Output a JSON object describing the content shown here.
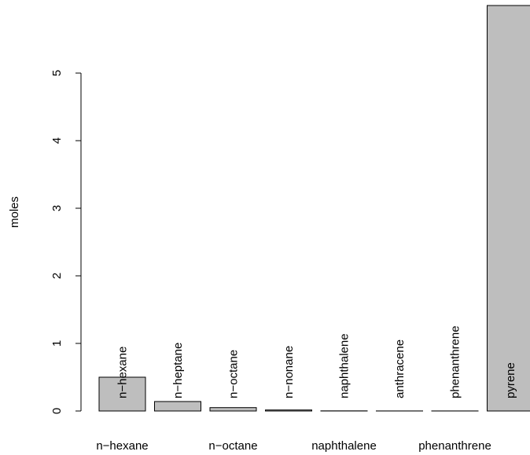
{
  "chart_data": {
    "type": "bar",
    "y_label": "moles",
    "categories": [
      "n−hexane",
      "n−heptane",
      "n−octane",
      "n−nonane",
      "naphthalene",
      "anthracene",
      "phenanthrene",
      "pyrene"
    ],
    "values": [
      0.5,
      0.14,
      0.05,
      0.015,
      0.002,
      0.001,
      0.001,
      6.0
    ],
    "color": "#bebebe",
    "ylim": [
      0,
      6.0
    ],
    "yticks": [
      0,
      1,
      2,
      3,
      4,
      5
    ]
  }
}
